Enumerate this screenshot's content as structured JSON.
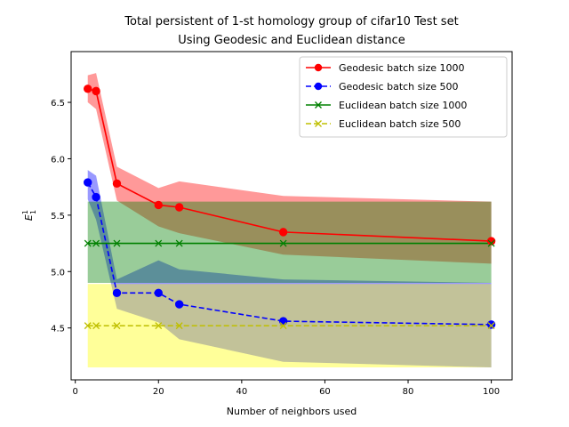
{
  "chart_data": {
    "type": "line",
    "title_line1": "Total persistent of 1-st homology group of cifar10 Test set",
    "title_line2": "Using Geodesic and Euclidean distance",
    "xlabel": "Number of neighbors used",
    "ylabel_main": "E",
    "ylabel_sup": "1",
    "ylabel_sub": "1",
    "xlim": [
      -1,
      105
    ],
    "ylim": [
      4.04,
      6.95
    ],
    "xticks": [
      0,
      20,
      40,
      60,
      80,
      100
    ],
    "yticks": [
      4.5,
      5.0,
      5.5,
      6.0,
      6.5
    ],
    "ytick_labels": [
      "4.5",
      "5.0",
      "5.5",
      "6.0",
      "6.5"
    ],
    "legend_position": "upper right",
    "series": [
      {
        "name": "Geodesic batch size 1000",
        "color": "#ff0000",
        "linestyle": "solid",
        "marker": "circle",
        "x": [
          3,
          5,
          10,
          20,
          25,
          50,
          100
        ],
        "y": [
          6.62,
          6.6,
          5.78,
          5.59,
          5.57,
          5.35,
          5.27
        ],
        "band_color": "#ff0000",
        "band_lower": [
          6.5,
          6.44,
          5.63,
          5.4,
          5.34,
          5.15,
          5.07
        ],
        "band_upper": [
          6.74,
          6.76,
          5.93,
          5.74,
          5.8,
          5.67,
          5.62
        ]
      },
      {
        "name": "Geodesic batch size 500",
        "color": "#0000ff",
        "linestyle": "dashed",
        "marker": "circle",
        "x": [
          3,
          5,
          10,
          20,
          25,
          50,
          100
        ],
        "y": [
          5.79,
          5.66,
          4.81,
          4.81,
          4.71,
          4.56,
          4.53
        ],
        "band_color": "#0000ff",
        "band_lower": [
          5.64,
          5.46,
          4.67,
          4.55,
          4.4,
          4.2,
          4.15
        ],
        "band_upper": [
          5.9,
          5.85,
          4.93,
          5.1,
          5.02,
          4.93,
          4.9
        ]
      },
      {
        "name": "Euclidean batch size 1000",
        "color": "#008000",
        "linestyle": "solid",
        "marker": "x",
        "x": [
          3,
          5,
          10,
          20,
          25,
          50,
          100
        ],
        "y": [
          5.25,
          5.25,
          5.25,
          5.25,
          5.25,
          5.25,
          5.25
        ],
        "band_color": "#008000",
        "band_lower": [
          4.9,
          4.9,
          4.9,
          4.9,
          4.9,
          4.9,
          4.9
        ],
        "band_upper": [
          5.62,
          5.62,
          5.62,
          5.62,
          5.62,
          5.62,
          5.62
        ]
      },
      {
        "name": "Euclidean batch size 500",
        "color": "#bfbf00",
        "linestyle": "dashed",
        "marker": "x",
        "x": [
          3,
          5,
          10,
          20,
          25,
          50,
          100
        ],
        "y": [
          4.52,
          4.52,
          4.52,
          4.52,
          4.52,
          4.52,
          4.52
        ],
        "band_color": "#ffff00",
        "band_lower": [
          4.15,
          4.15,
          4.15,
          4.15,
          4.15,
          4.15,
          4.15
        ],
        "band_upper": [
          4.89,
          4.89,
          4.89,
          4.89,
          4.89,
          4.89,
          4.89
        ]
      }
    ]
  }
}
